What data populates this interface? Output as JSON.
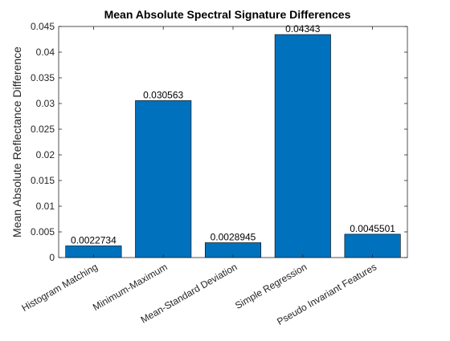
{
  "chart_data": {
    "type": "bar",
    "title": "Mean Absolute Spectral Signature Differences",
    "xlabel": "",
    "ylabel": "Mean Absolute Reflectance Difference",
    "categories": [
      "Histogram Matching",
      "Minimum-Maximum",
      "Mean-Standard Deviation",
      "Simple Regression",
      "Pseudo Invariant Features"
    ],
    "values": [
      0.0022734,
      0.030563,
      0.0028945,
      0.04343,
      0.0045501
    ],
    "data_labels": [
      "0.0022734",
      "0.030563",
      "0.0028945",
      "0.04343",
      "0.0045501"
    ],
    "ylim": [
      0,
      0.045
    ],
    "yticks": [
      0,
      0.005,
      0.01,
      0.015,
      0.02,
      0.025,
      0.03,
      0.035,
      0.04,
      0.045
    ],
    "ytick_labels": [
      "0",
      "0.005",
      "0.01",
      "0.015",
      "0.02",
      "0.025",
      "0.03",
      "0.035",
      "0.04",
      "0.045"
    ],
    "bar_color": "#0072BD",
    "grid": false,
    "legend": "none"
  }
}
